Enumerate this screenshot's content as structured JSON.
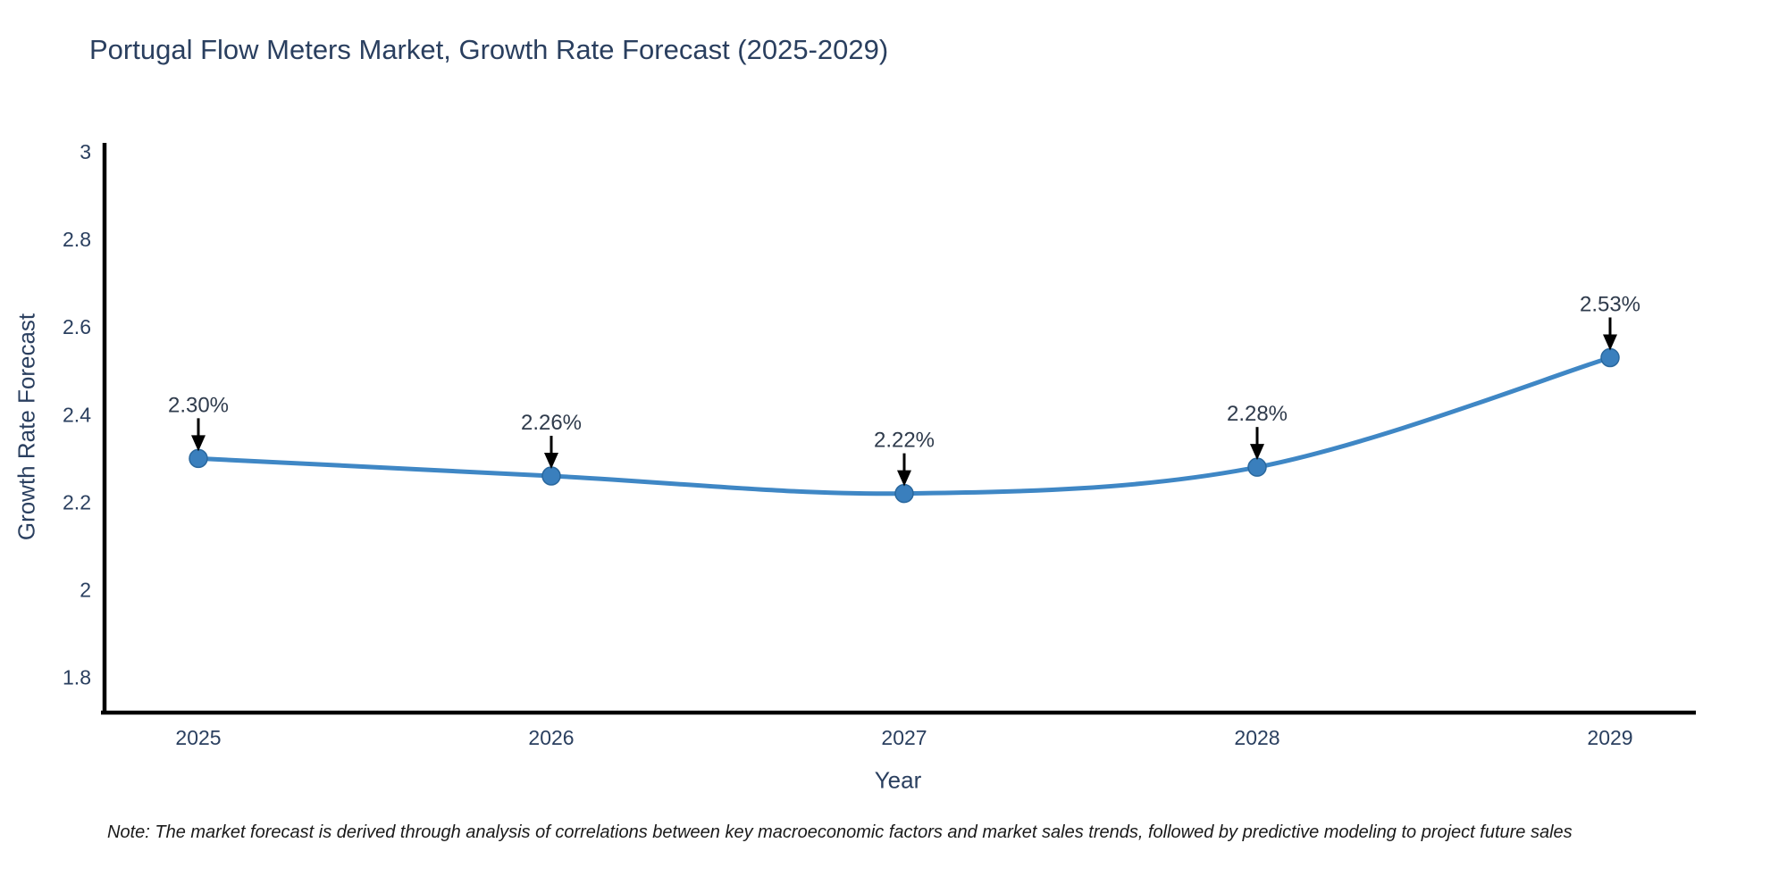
{
  "note": {
    "text": "Note: The market forecast is derived through analysis of correlations between key macroeconomic factors and market sales trends, followed by predictive modeling to project future sales"
  },
  "chart_data": {
    "type": "line",
    "title": "Portugal Flow Meters Market, Growth Rate Forecast (2025-2029)",
    "x": [
      "2025",
      "2026",
      "2027",
      "2028",
      "2029"
    ],
    "series": [
      {
        "name": "Growth Rate Forecast",
        "values": [
          2.3,
          2.26,
          2.22,
          2.28,
          2.53
        ]
      }
    ],
    "point_labels": [
      "2.30%",
      "2.26%",
      "2.22%",
      "2.28%",
      "2.53%"
    ],
    "xlabel": "Year",
    "ylabel": "Growth Rate Forecast",
    "yticks": [
      1.8,
      2,
      2.2,
      2.4,
      2.6,
      2.8,
      3
    ],
    "ylim": [
      1.72,
      3.02
    ],
    "grid": false,
    "legend": "none",
    "line_shape": "spline",
    "annotations_have_arrows": true,
    "colors": {
      "line": "#3f87c5",
      "marker": "#3a7fbd",
      "marker_edge": "#2a689e",
      "axis": "#000000",
      "tick_text": "#2a3f5f",
      "annotation_text": "#2f3b4c",
      "annotation_arrow": "#000000",
      "title_text": "#2a3f5f",
      "note_text": "#1a1a1a",
      "background": "#ffffff"
    }
  }
}
